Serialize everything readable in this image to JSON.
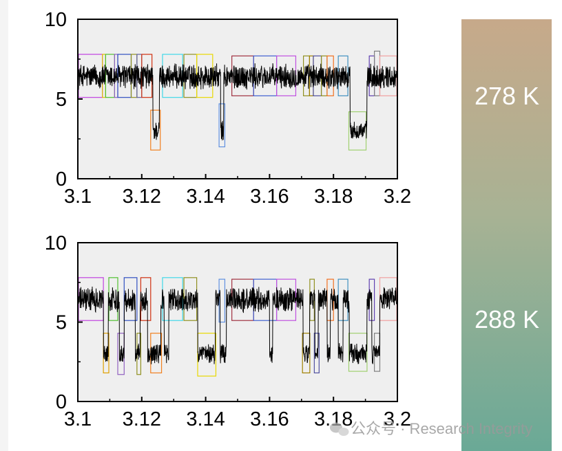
{
  "chart_data": [
    {
      "type": "line",
      "xlim": [
        3.1,
        3.2
      ],
      "ylim": [
        0,
        10
      ],
      "xticks": [
        "3.1",
        "3.12",
        "3.14",
        "3.16",
        "3.18",
        "3.2"
      ],
      "yticks": [
        "0",
        "5",
        "10"
      ],
      "high_level": 6.4,
      "low_level": 3.0,
      "low_intervals": [
        [
          3.1235,
          3.1255
        ],
        [
          3.1447,
          3.1457
        ],
        [
          3.1852,
          3.1905
        ]
      ],
      "state_boxes": [
        {
          "x0": 3.1002,
          "x1": 3.1077,
          "y0": 5.1,
          "y1": 7.8,
          "color": "#c040e0"
        },
        {
          "x0": 3.1077,
          "x1": 3.1087,
          "y0": 5.1,
          "y1": 7.8,
          "color": "#e0c000"
        },
        {
          "x0": 3.1087,
          "x1": 3.1115,
          "y0": 5.1,
          "y1": 7.8,
          "color": "#50c030"
        },
        {
          "x0": 3.1115,
          "x1": 3.1125,
          "y0": 5.1,
          "y1": 7.8,
          "color": "#9060c0"
        },
        {
          "x0": 3.1125,
          "x1": 3.1167,
          "y0": 5.1,
          "y1": 7.8,
          "color": "#3050c0"
        },
        {
          "x0": 3.1167,
          "x1": 3.1185,
          "y0": 5.1,
          "y1": 7.8,
          "color": "#909020"
        },
        {
          "x0": 3.1185,
          "x1": 3.12,
          "y0": 5.1,
          "y1": 7.8,
          "color": "#6060a0"
        },
        {
          "x0": 3.12,
          "x1": 3.1232,
          "y0": 5.1,
          "y1": 7.8,
          "color": "#d03010"
        },
        {
          "x0": 3.1228,
          "x1": 3.1258,
          "y0": 1.8,
          "y1": 4.3,
          "color": "#f08020"
        },
        {
          "x0": 3.1265,
          "x1": 3.1328,
          "y0": 5.1,
          "y1": 7.8,
          "color": "#40d8e8"
        },
        {
          "x0": 3.1332,
          "x1": 3.1372,
          "y0": 5.1,
          "y1": 7.8,
          "color": "#909020"
        },
        {
          "x0": 3.1372,
          "x1": 3.1422,
          "y0": 5.1,
          "y1": 7.8,
          "color": "#e8d800"
        },
        {
          "x0": 3.1442,
          "x1": 3.146,
          "y0": 2.0,
          "y1": 4.7,
          "color": "#6090e0"
        },
        {
          "x0": 3.1482,
          "x1": 3.155,
          "y0": 5.2,
          "y1": 7.7,
          "color": "#a03040"
        },
        {
          "x0": 3.155,
          "x1": 3.1622,
          "y0": 5.2,
          "y1": 7.7,
          "color": "#4060d0"
        },
        {
          "x0": 3.1622,
          "x1": 3.1682,
          "y0": 5.2,
          "y1": 7.7,
          "color": "#c050e0"
        },
        {
          "x0": 3.1706,
          "x1": 3.1725,
          "y0": 5.2,
          "y1": 7.7,
          "color": "#909020"
        },
        {
          "x0": 3.1725,
          "x1": 3.1737,
          "y0": 5.2,
          "y1": 7.7,
          "color": "#a08000"
        },
        {
          "x0": 3.1737,
          "x1": 3.1762,
          "y0": 5.2,
          "y1": 7.7,
          "color": "#5050a0"
        },
        {
          "x0": 3.1762,
          "x1": 3.178,
          "y0": 5.2,
          "y1": 7.7,
          "color": "#909020"
        },
        {
          "x0": 3.178,
          "x1": 3.18,
          "y0": 5.2,
          "y1": 7.7,
          "color": "#f07020"
        },
        {
          "x0": 3.1815,
          "x1": 3.1845,
          "y0": 5.2,
          "y1": 7.7,
          "color": "#4090c0"
        },
        {
          "x0": 3.1848,
          "x1": 3.1902,
          "y0": 1.8,
          "y1": 4.2,
          "color": "#a0d070"
        },
        {
          "x0": 3.1912,
          "x1": 3.1928,
          "y0": 5.2,
          "y1": 7.7,
          "color": "#6040b0"
        },
        {
          "x0": 3.1928,
          "x1": 3.1945,
          "y0": 5.2,
          "y1": 8.0,
          "color": "#808080"
        },
        {
          "x0": 3.1945,
          "x1": 3.1998,
          "y0": 5.2,
          "y1": 7.7,
          "color": "#f0a0a0"
        }
      ]
    },
    {
      "type": "line",
      "xlim": [
        3.1,
        3.2
      ],
      "ylim": [
        0,
        10
      ],
      "xticks": [
        "3.1",
        "3.12",
        "3.14",
        "3.16",
        "3.18",
        "3.2"
      ],
      "yticks": [
        "0",
        "5",
        "10"
      ],
      "high_level": 6.4,
      "low_level": 3.0,
      "low_intervals": [
        [
          3.108,
          3.1095
        ],
        [
          3.113,
          3.1145
        ],
        [
          3.118,
          3.1195
        ],
        [
          3.1218,
          3.126
        ],
        [
          3.127,
          3.1285
        ],
        [
          3.1375,
          3.143
        ],
        [
          3.1445,
          3.1465
        ],
        [
          3.16,
          3.161
        ],
        [
          3.1705,
          3.1725
        ],
        [
          3.1742,
          3.1752
        ],
        [
          3.178,
          3.179
        ],
        [
          3.1815,
          3.183
        ],
        [
          3.185,
          3.1905
        ],
        [
          3.192,
          3.1945
        ]
      ],
      "state_boxes": [
        {
          "x0": 3.1002,
          "x1": 3.108,
          "y0": 5.1,
          "y1": 7.8,
          "color": "#c040e0"
        },
        {
          "x0": 3.108,
          "x1": 3.1097,
          "y0": 1.8,
          "y1": 4.3,
          "color": "#e0a000"
        },
        {
          "x0": 3.1097,
          "x1": 3.1125,
          "y0": 5.1,
          "y1": 7.8,
          "color": "#50c030"
        },
        {
          "x0": 3.1125,
          "x1": 3.1145,
          "y0": 1.7,
          "y1": 4.3,
          "color": "#9060c0"
        },
        {
          "x0": 3.1145,
          "x1": 3.1185,
          "y0": 5.1,
          "y1": 7.8,
          "color": "#3050c0"
        },
        {
          "x0": 3.1185,
          "x1": 3.1197,
          "y0": 1.7,
          "y1": 4.3,
          "color": "#909020"
        },
        {
          "x0": 3.1197,
          "x1": 3.1228,
          "y0": 5.1,
          "y1": 7.8,
          "color": "#d03010"
        },
        {
          "x0": 3.1228,
          "x1": 3.1262,
          "y0": 1.8,
          "y1": 4.3,
          "color": "#f08020"
        },
        {
          "x0": 3.1265,
          "x1": 3.1328,
          "y0": 5.1,
          "y1": 7.8,
          "color": "#40d8e8"
        },
        {
          "x0": 3.1332,
          "x1": 3.1372,
          "y0": 5.1,
          "y1": 7.8,
          "color": "#909020"
        },
        {
          "x0": 3.1375,
          "x1": 3.1432,
          "y0": 1.6,
          "y1": 4.3,
          "color": "#e8d800"
        },
        {
          "x0": 3.1442,
          "x1": 3.146,
          "y0": 5.0,
          "y1": 7.7,
          "color": "#6090e0"
        },
        {
          "x0": 3.1482,
          "x1": 3.155,
          "y0": 5.1,
          "y1": 7.7,
          "color": "#a03040"
        },
        {
          "x0": 3.155,
          "x1": 3.1622,
          "y0": 5.1,
          "y1": 7.7,
          "color": "#4060d0"
        },
        {
          "x0": 3.1622,
          "x1": 3.1682,
          "y0": 5.1,
          "y1": 7.7,
          "color": "#c050e0"
        },
        {
          "x0": 3.1703,
          "x1": 3.1726,
          "y0": 1.8,
          "y1": 4.3,
          "color": "#a08000"
        },
        {
          "x0": 3.1726,
          "x1": 3.174,
          "y0": 5.1,
          "y1": 7.7,
          "color": "#909020"
        },
        {
          "x0": 3.174,
          "x1": 3.1755,
          "y0": 1.8,
          "y1": 4.3,
          "color": "#5050a0"
        },
        {
          "x0": 3.178,
          "x1": 3.18,
          "y0": 5.1,
          "y1": 7.7,
          "color": "#f07020"
        },
        {
          "x0": 3.1815,
          "x1": 3.1845,
          "y0": 5.1,
          "y1": 7.7,
          "color": "#4090c0"
        },
        {
          "x0": 3.1848,
          "x1": 3.1905,
          "y0": 1.9,
          "y1": 4.3,
          "color": "#a0d070"
        },
        {
          "x0": 3.1912,
          "x1": 3.1928,
          "y0": 5.1,
          "y1": 7.7,
          "color": "#6040b0"
        },
        {
          "x0": 3.1928,
          "x1": 3.1945,
          "y0": 1.9,
          "y1": 4.3,
          "color": "#808080"
        },
        {
          "x0": 3.1945,
          "x1": 3.1998,
          "y0": 5.1,
          "y1": 7.8,
          "color": "#f0a0a0"
        }
      ]
    }
  ],
  "colorbar": {
    "labels": [
      "278 K",
      "288 K"
    ],
    "top_color": "#c7a98a",
    "mid_color": "#a8b294",
    "bottom_color": "#6aa996"
  },
  "colors": {
    "plot_background": "#efefef",
    "trace": "#000000"
  },
  "watermark": {
    "text": "公众号 · Research Integrity",
    "icon": "wechat-icon"
  }
}
